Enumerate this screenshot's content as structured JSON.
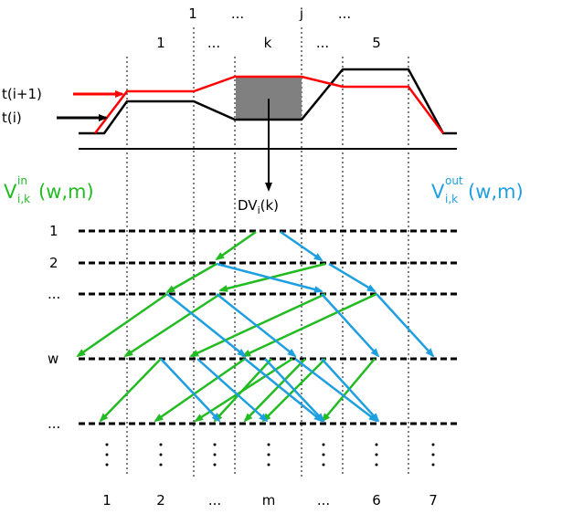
{
  "top_labels": {
    "index_row": [
      "1",
      "...",
      "j",
      "..."
    ],
    "segment_row": [
      "1",
      "...",
      "k",
      "...",
      "5"
    ]
  },
  "legend": {
    "next_trajectory": "t(i+1)",
    "current_trajectory": "t(i)"
  },
  "delta_label": {
    "prefix": "DV",
    "sub": "i",
    "suffix": "(k)"
  },
  "value_in": {
    "base": "V",
    "sup": "in",
    "sub": "i,k",
    "args": "(w,m)"
  },
  "value_out": {
    "base": "V",
    "sup": "out",
    "sub": "i,k",
    "args": "(w,m)"
  },
  "row_labels": [
    "1",
    "2",
    "...",
    "w",
    "..."
  ],
  "column_labels": [
    "1",
    "2",
    "...",
    "m",
    "...",
    "6",
    "7"
  ],
  "colors": {
    "next_trajectory": "#ff0000",
    "current_trajectory": "#000000",
    "value_in": "#22bb22",
    "value_out": "#1e9fe0",
    "highlight_box": "#808080"
  }
}
